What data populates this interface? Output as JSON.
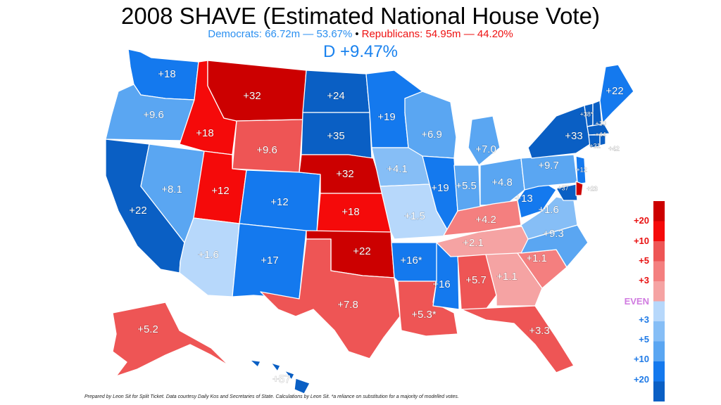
{
  "header": {
    "title": "2008 SHAVE (Estimated National House Vote)",
    "dem_summary": "Democrats: 66.72m — 53.67%",
    "separator": "•",
    "rep_summary": "Republicans: 54.95m — 44.20%",
    "margin": "D +9.47%"
  },
  "colors": {
    "D20": "#0a5fc4",
    "D10": "#1479ee",
    "D5": "#5aa6f2",
    "D3": "#86bef6",
    "D1": "#b7d8fb",
    "EVEN": "#ffffff",
    "R1": "#f5a3a3",
    "R3": "#f47f7f",
    "R5": "#ee5555",
    "R10": "#f50a0a",
    "R20": "#cc0000",
    "even_label": "#d07be0",
    "dem_label": "#1f7ae6",
    "rep_label": "#e81010"
  },
  "states": {
    "WA": "+18",
    "OR": "+9.6",
    "CA": "+22",
    "NV": "+8.1",
    "ID": "+18",
    "MT": "+32",
    "WY": "+9.6",
    "UT": "+12",
    "AZ": "+1.6",
    "CO": "+12",
    "NM": "+17",
    "ND": "+24",
    "SD": "+35",
    "NE": "+32",
    "KS": "+18",
    "OK": "+22",
    "TX": "+7.8",
    "MN": "+19",
    "IA": "+4.1",
    "MO": "+1.5",
    "AR": "+16*",
    "LA": "+5.3*",
    "WI": "+6.9",
    "IL": "+19",
    "MS": "+16",
    "MI": "+7.0",
    "IN": "+5.5",
    "KY": "+4.2",
    "TN": "+2.1",
    "AL": "+5.7",
    "GA": "+1.1",
    "FL": "+3.3",
    "OH": "+4.8",
    "WV": "+13",
    "VA": "+1.6",
    "NC": "+9.3",
    "SC": "+1.1",
    "PA": "+9.7",
    "NY": "+33",
    "VT": "+38*",
    "NH": "+10",
    "ME": "+22",
    "MA": "+44",
    "RI": "+31",
    "CT": "+42",
    "NJ": "+12",
    "DE": "+23",
    "MD": "+37",
    "AK": "+5.2",
    "HI": "+57"
  },
  "legend": {
    "labels": [
      "+20",
      "+10",
      "+5",
      "+3",
      "EVEN",
      "+3",
      "+5",
      "+10",
      "+20"
    ]
  },
  "footnote": "Prepared by Leon Sit for Split Ticket. Data courtesy Daily Kos and Secretaries of State. Calculations by Leon Sit.   *a reliance on substitution for a majority of modelled votes."
}
